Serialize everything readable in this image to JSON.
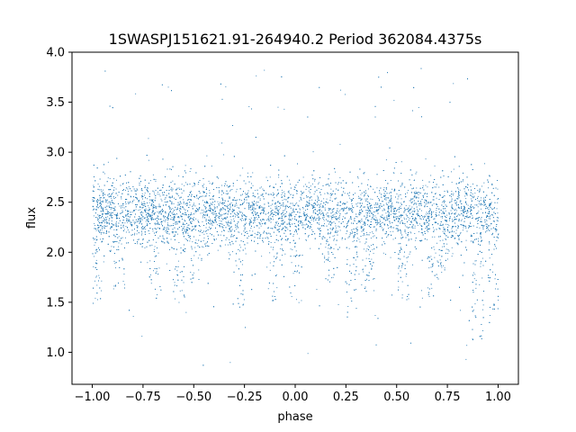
{
  "chart_data": {
    "type": "scatter",
    "title": "1SWASPJ151621.91-264940.2 Period 362084.4375s",
    "xlabel": "phase",
    "ylabel": "flux",
    "xlim": [
      -1.1,
      1.1
    ],
    "ylim": [
      0.68,
      4.0
    ],
    "xticks": [
      -1.0,
      -0.75,
      -0.5,
      -0.25,
      0.0,
      0.25,
      0.5,
      0.75,
      1.0
    ],
    "xtick_labels": [
      "−1.00",
      "−0.75",
      "−0.50",
      "−0.25",
      "0.00",
      "0.25",
      "0.50",
      "0.75",
      "1.00"
    ],
    "yticks": [
      1.0,
      1.5,
      2.0,
      2.5,
      3.0,
      3.5,
      4.0
    ],
    "ytick_labels": [
      "1.0",
      "1.5",
      "2.0",
      "2.5",
      "3.0",
      "3.5",
      "4.0"
    ],
    "grid": false,
    "point_color": "#1f77b4",
    "series": [
      {
        "x_range": [
          -1.0,
          1.0
        ],
        "baseline_flux": 2.4,
        "core_spread": 0.17,
        "dip_phases": [
          -0.985,
          -0.87,
          -0.69,
          -0.575,
          -0.49,
          -0.28,
          -0.12,
          0.0,
          0.16,
          0.275,
          0.36,
          0.53,
          0.68,
          0.73,
          0.9,
          0.98
        ],
        "dip_min_flux": [
          1.45,
          1.6,
          1.5,
          1.5,
          1.7,
          1.4,
          1.5,
          1.5,
          1.7,
          1.35,
          1.6,
          1.5,
          1.55,
          1.8,
          1.1,
          1.3
        ],
        "flux_min": 0.85,
        "flux_max": 3.85
      }
    ]
  }
}
